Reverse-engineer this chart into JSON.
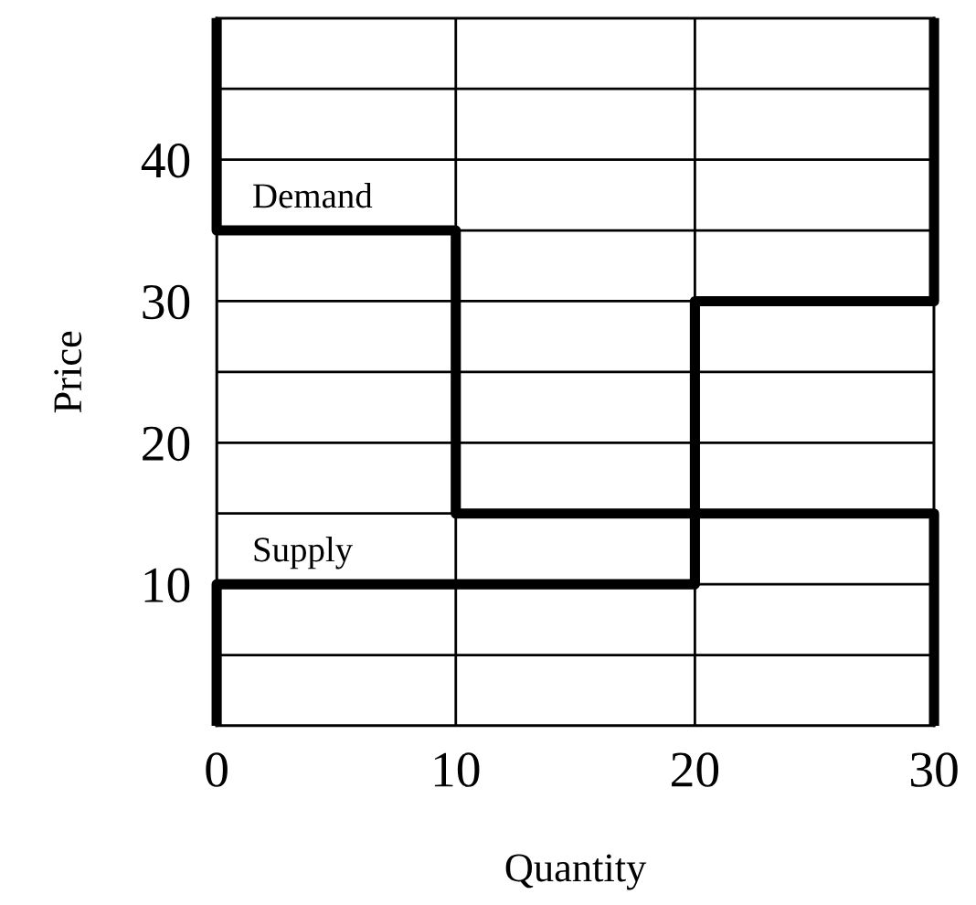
{
  "chart_data": {
    "type": "line",
    "xlabel": "Quantity",
    "ylabel": "Price",
    "xlim": [
      0,
      30
    ],
    "ylim": [
      0,
      50
    ],
    "xticks": [
      0,
      10,
      20,
      30
    ],
    "yticks": [
      {
        "value": 0,
        "label": null
      },
      {
        "value": 5,
        "label": null
      },
      10,
      {
        "value": 15,
        "label": null
      },
      20,
      {
        "value": 25,
        "label": null
      },
      30,
      {
        "value": 35,
        "label": null
      },
      40,
      {
        "value": 45,
        "label": null
      },
      {
        "value": 50,
        "label": null
      }
    ],
    "grid": true,
    "legend": false,
    "marker": "none",
    "line_style": "solid",
    "series": [
      {
        "name": "Demand",
        "color": "#000000",
        "x": [
          0,
          0,
          10,
          10,
          30,
          30
        ],
        "values": [
          50,
          35,
          35,
          15,
          15,
          0
        ]
      },
      {
        "name": "Supply",
        "color": "#000000",
        "x": [
          0,
          0,
          20,
          20,
          30,
          30
        ],
        "values": [
          0,
          10,
          10,
          30,
          30,
          50
        ]
      }
    ]
  }
}
